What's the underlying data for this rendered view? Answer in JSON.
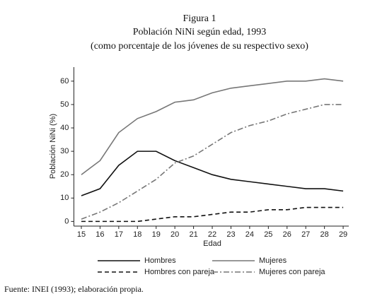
{
  "chart_data": {
    "type": "line",
    "title": "Figura 1",
    "subtitle": "Población NiNi según edad, 1993",
    "subtitle2": "(como porcentaje de los jóvenes de su respectivo sexo)",
    "x_label": "Edad",
    "y_label": "Población NiNi (%)",
    "source": "Fuente: INEI (1993); elaboración propia.",
    "x": [
      15,
      16,
      17,
      18,
      19,
      20,
      21,
      22,
      23,
      24,
      25,
      26,
      27,
      28,
      29
    ],
    "series": [
      {
        "name": "Hombres",
        "color": "#111111",
        "dash": "solid",
        "values": [
          11,
          14,
          24,
          30,
          30,
          26,
          23,
          20,
          18,
          17,
          16,
          15,
          14,
          14,
          13
        ]
      },
      {
        "name": "Mujeres",
        "color": "#777777",
        "dash": "solid",
        "values": [
          20,
          26,
          38,
          44,
          47,
          51,
          52,
          55,
          57,
          58,
          59,
          60,
          60,
          61,
          60
        ]
      },
      {
        "name": "Hombres con pareja",
        "color": "#111111",
        "dash": "dashed",
        "values": [
          0,
          0,
          0,
          0,
          1,
          2,
          2,
          3,
          4,
          4,
          5,
          5,
          6,
          6,
          6
        ]
      },
      {
        "name": "Mujeres con pareja",
        "color": "#777777",
        "dash": "dashdot",
        "values": [
          1,
          4,
          8,
          13,
          18,
          25,
          28,
          33,
          38,
          41,
          43,
          46,
          48,
          50,
          50
        ]
      }
    ],
    "xlim": [
      14.6,
      29.3
    ],
    "ylim": [
      -2,
      66
    ],
    "xticks": [
      15,
      16,
      17,
      18,
      19,
      20,
      21,
      22,
      23,
      24,
      25,
      26,
      27,
      28,
      29
    ],
    "yticks": [
      0,
      10,
      20,
      30,
      40,
      50,
      60
    ],
    "grid": false
  }
}
